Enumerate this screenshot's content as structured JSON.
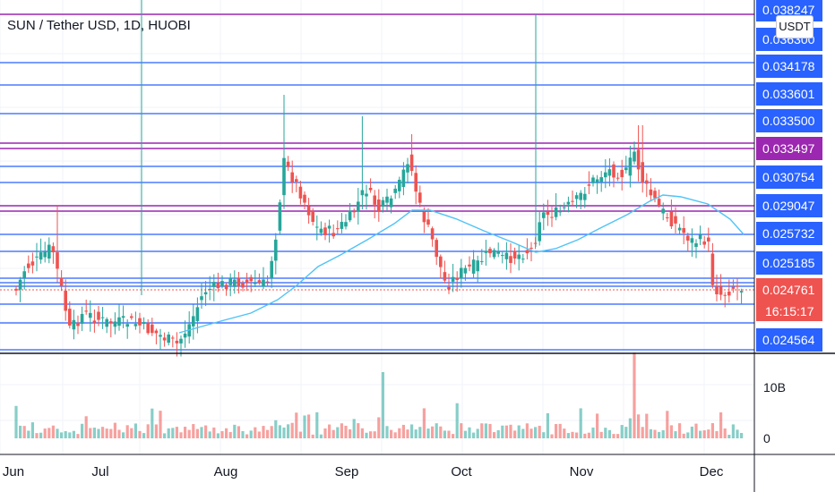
{
  "header": {
    "title": "SUN / Tether USD, 1D, HUOBI",
    "currency_button": "USDT"
  },
  "colors": {
    "up": "#26a69a",
    "down": "#ef5350",
    "level_line": "#2962ff",
    "resistance_line": "#9c27b0",
    "moving_average": "#4fc3f7",
    "vertical_markers": "#26a69a",
    "price_tag": "#ef5350",
    "price_tag_purple": "#9c27b0",
    "axis_tag": "#2962ff"
  },
  "chart_data": {
    "type": "candlestick",
    "title": "SUN / Tether USD, 1D, HUOBI",
    "x_tick_labels": [
      "Jun",
      "Jul",
      "Aug",
      "Sep",
      "Oct",
      "Nov",
      "Dec"
    ],
    "price_axis_labels": [
      "0.038247",
      "0.036300",
      "0.034178",
      "0.033601",
      "0.033500",
      "0.033497",
      "0.030754",
      "0.029047",
      "0.025732",
      "0.025185",
      "0.024761",
      "0.024564"
    ],
    "current_price": "0.024761",
    "countdown": "16:15:17",
    "volume_axis_labels": [
      "10B",
      "0"
    ],
    "horizontal_levels": [
      {
        "label": "0.038247",
        "color": "purple"
      },
      {
        "label": "0.034178",
        "color": "blue"
      },
      {
        "label": "0.033601",
        "color": "blue"
      },
      {
        "label": "0.033500",
        "color": "purple"
      },
      {
        "label": "0.033497",
        "color": "purple"
      },
      {
        "label": "0.030754",
        "color": "blue"
      },
      {
        "label": "0.029047",
        "color": "purple"
      },
      {
        "label": "0.025732",
        "color": "blue"
      },
      {
        "label": "0.025185",
        "color": "blue"
      },
      {
        "label": "0.024564",
        "color": "blue"
      }
    ],
    "series": [
      {
        "name": "SUN/USDT",
        "kind": "candles"
      },
      {
        "name": "Volume",
        "kind": "histogram"
      }
    ]
  }
}
